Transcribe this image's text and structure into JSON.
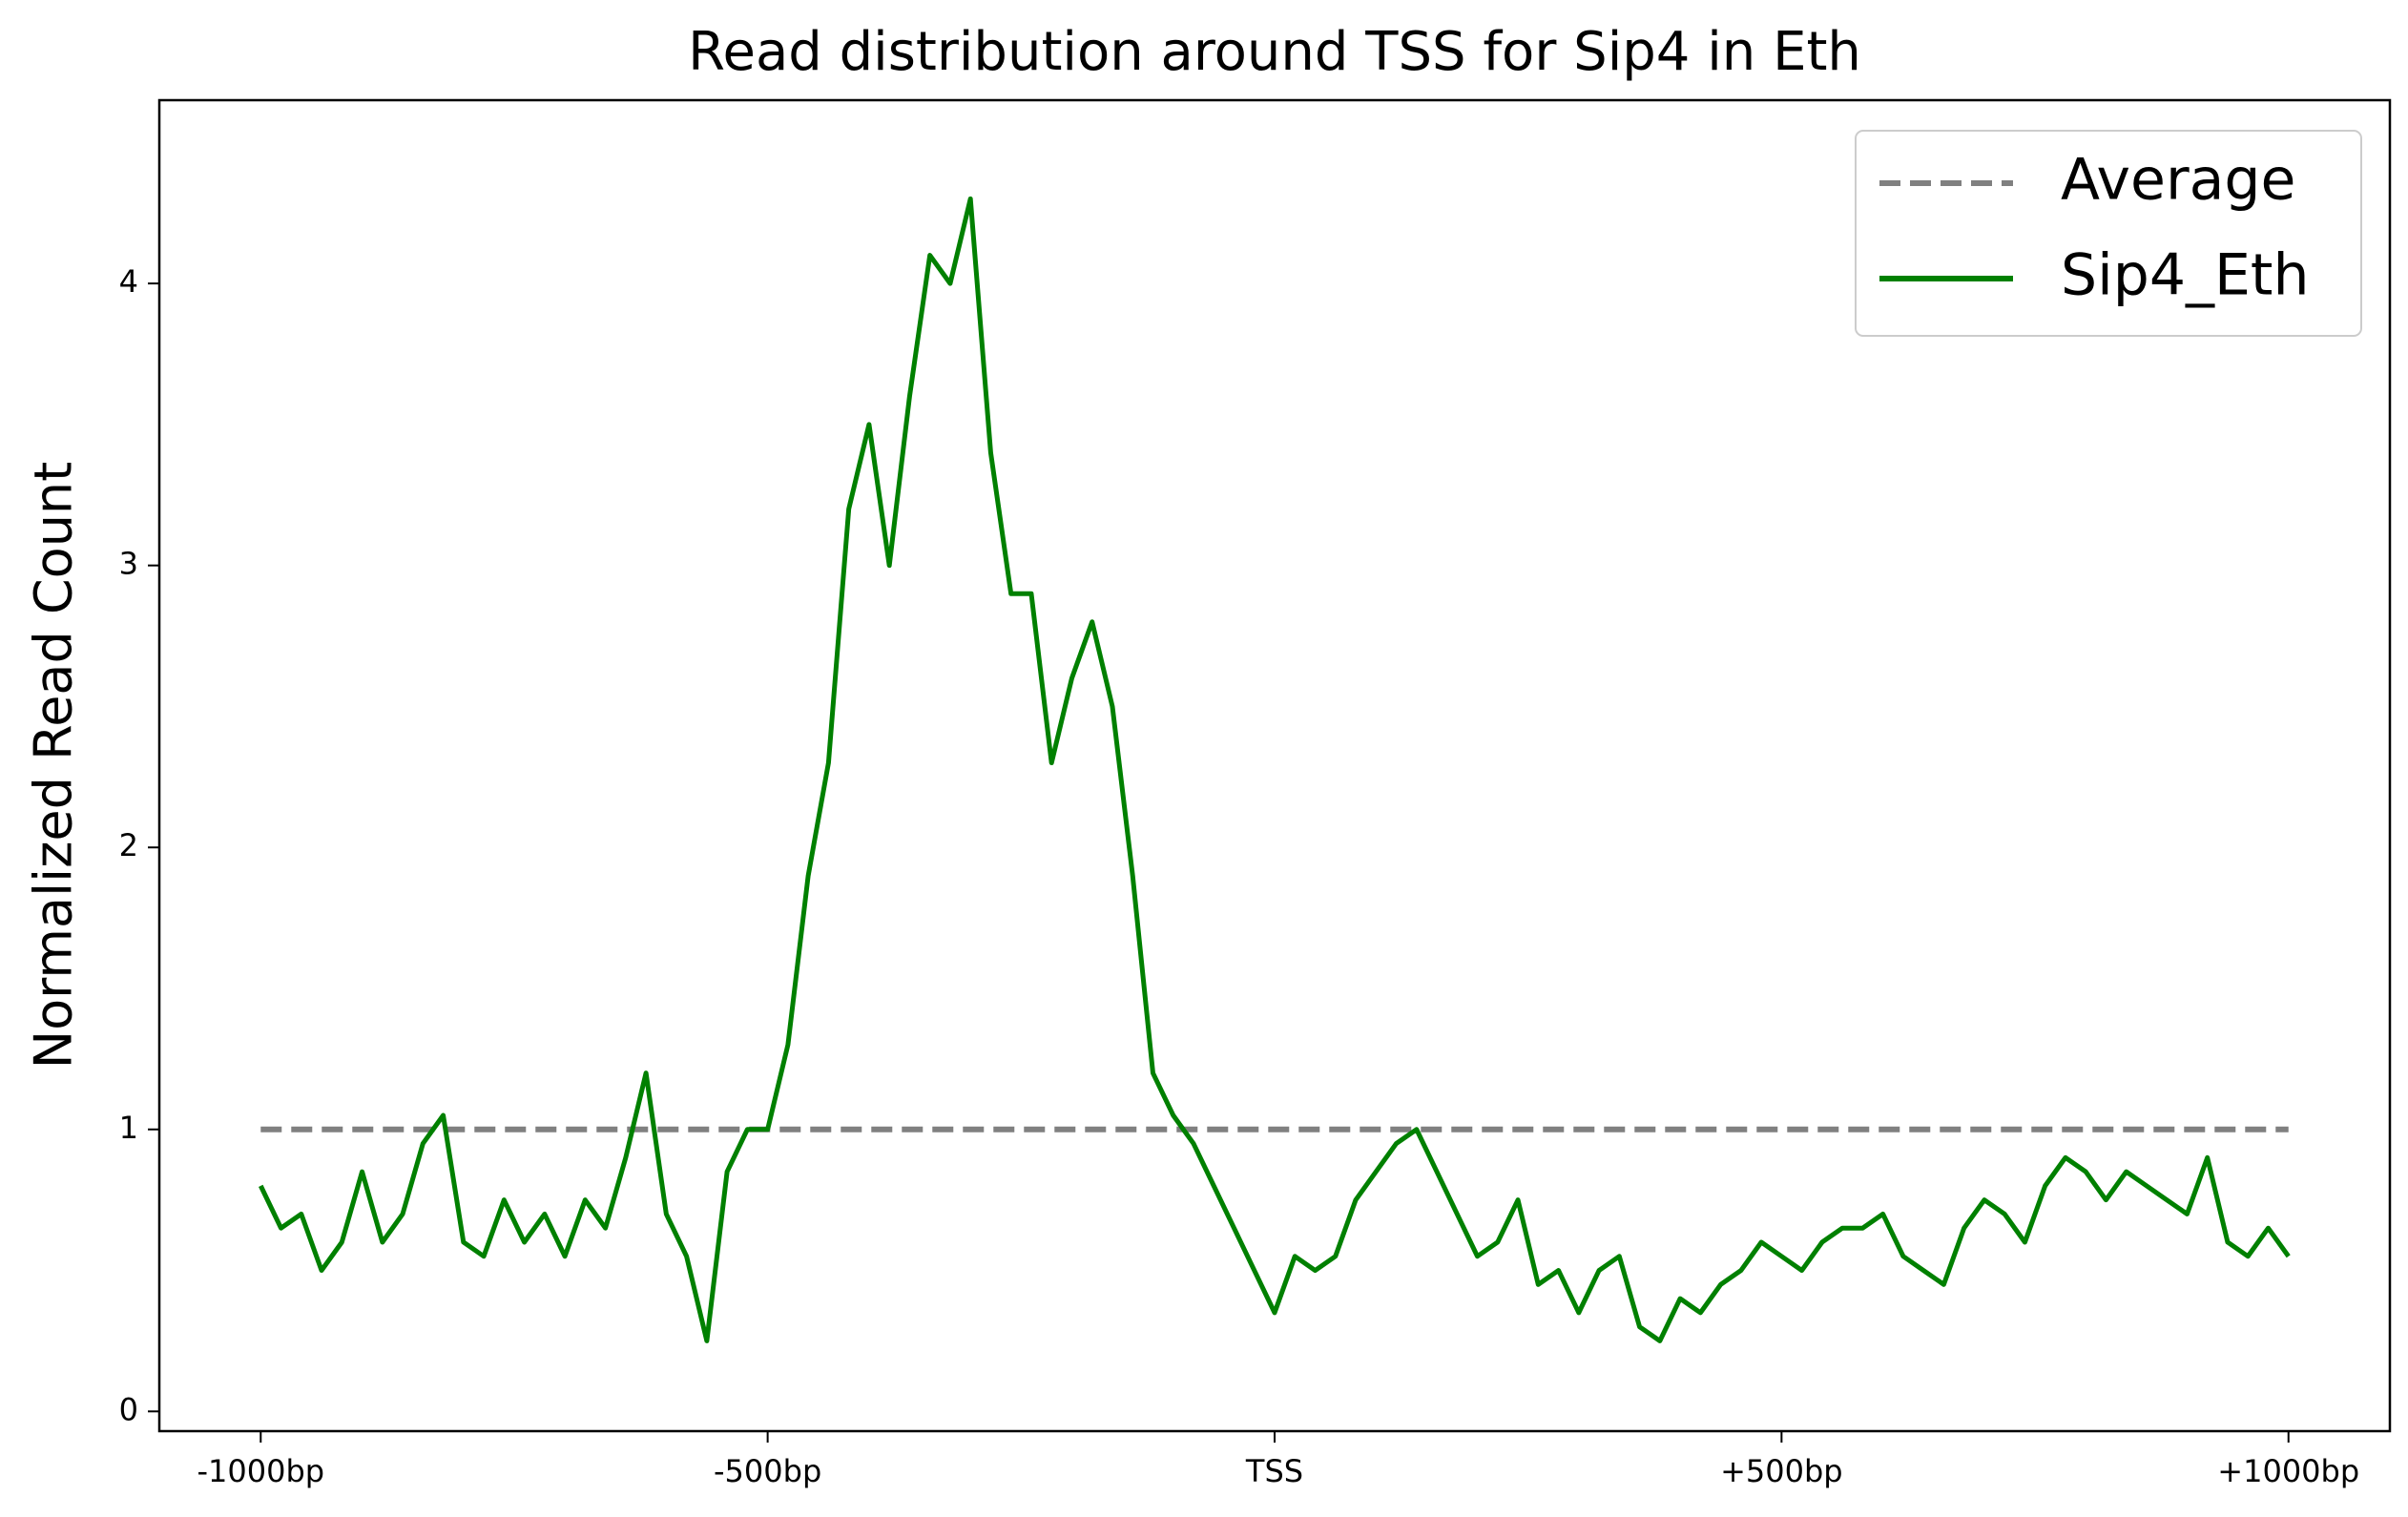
{
  "chart_data": {
    "type": "line",
    "title": "Read distribution around TSS for Sip4 in Eth",
    "y_label": "Normalized Read Count",
    "xlim": [
      -1100,
      1100
    ],
    "ylim": [
      -0.07,
      4.65
    ],
    "xticks": [
      {
        "value": -1000,
        "label": "-1000bp"
      },
      {
        "value": -500,
        "label": "-500bp"
      },
      {
        "value": 0,
        "label": "TSS"
      },
      {
        "value": 500,
        "label": "+500bp"
      },
      {
        "value": 1000,
        "label": "+1000bp"
      }
    ],
    "yticks": [
      0,
      1,
      2,
      3,
      4
    ],
    "legend": "upper right",
    "series": [
      {
        "name": "Average",
        "color": "#808080",
        "dashed": true,
        "x": [
          -1000,
          1000
        ],
        "values": [
          1,
          1
        ]
      },
      {
        "name": "Sip4_Eth",
        "color": "#008000",
        "dashed": false,
        "x": [
          -1000,
          -980,
          -960,
          -940,
          -920,
          -900,
          -880,
          -860,
          -840,
          -820,
          -800,
          -780,
          -760,
          -740,
          -720,
          -700,
          -680,
          -660,
          -640,
          -620,
          -600,
          -580,
          -560,
          -540,
          -520,
          -500,
          -480,
          -460,
          -440,
          -420,
          -400,
          -380,
          -360,
          -340,
          -320,
          -300,
          -280,
          -260,
          -240,
          -220,
          -200,
          -180,
          -160,
          -140,
          -120,
          -100,
          -80,
          -60,
          -40,
          -20,
          0,
          20,
          40,
          60,
          80,
          100,
          120,
          140,
          160,
          180,
          200,
          220,
          240,
          260,
          280,
          300,
          320,
          340,
          360,
          380,
          400,
          420,
          440,
          460,
          480,
          500,
          520,
          540,
          560,
          580,
          600,
          620,
          640,
          660,
          680,
          700,
          720,
          740,
          760,
          780,
          800,
          820,
          840,
          860,
          880,
          900,
          920,
          940,
          960,
          980,
          1000
        ],
        "values": [
          0.8,
          0.65,
          0.7,
          0.5,
          0.6,
          0.85,
          0.6,
          0.7,
          0.95,
          1.05,
          0.6,
          0.55,
          0.75,
          0.6,
          0.7,
          0.55,
          0.75,
          0.65,
          0.9,
          1.2,
          0.7,
          0.55,
          0.25,
          0.85,
          1.0,
          1.0,
          1.3,
          1.9,
          2.3,
          3.2,
          3.5,
          3.0,
          3.6,
          4.1,
          4.0,
          4.3,
          3.4,
          2.9,
          2.9,
          2.3,
          2.6,
          2.8,
          2.5,
          1.9,
          1.2,
          1.05,
          0.95,
          0.8,
          0.65,
          0.5,
          0.35,
          0.55,
          0.5,
          0.55,
          0.75,
          0.85,
          0.95,
          1.0,
          0.85,
          0.7,
          0.55,
          0.6,
          0.75,
          0.45,
          0.5,
          0.35,
          0.5,
          0.55,
          0.3,
          0.25,
          0.4,
          0.35,
          0.45,
          0.5,
          0.6,
          0.55,
          0.5,
          0.6,
          0.65,
          0.65,
          0.7,
          0.55,
          0.5,
          0.45,
          0.65,
          0.75,
          0.7,
          0.6,
          0.8,
          0.9,
          0.85,
          0.75,
          0.85,
          0.8,
          0.75,
          0.7,
          0.9,
          0.6,
          0.55,
          0.65,
          0.55
        ]
      }
    ]
  }
}
